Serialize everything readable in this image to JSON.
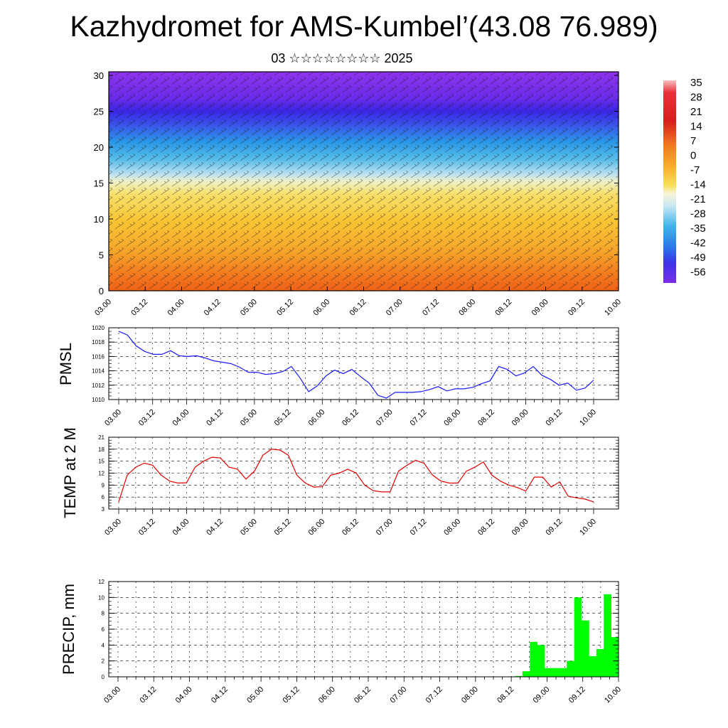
{
  "header": {
    "title": "Kazhydromet for AMS-Kumbel’(43.08 76.989)",
    "subtitle": "03 ☆☆☆☆☆☆☆☆ 2025"
  },
  "chart_data": [
    {
      "type": "heatmap",
      "description_of_field": "vertical cross-section of temperature with wind barbs",
      "x_ticks": [
        "03.00",
        "03.12",
        "04.00",
        "04.12",
        "05.00",
        "05.12",
        "06.00",
        "06.12",
        "07.00",
        "07.12",
        "08.00",
        "08.12",
        "09.00",
        "09.12",
        "10.00"
      ],
      "y_ticks": [
        0,
        5,
        10,
        15,
        20,
        25,
        30
      ],
      "ylim": [
        0,
        30.5
      ],
      "colorbar_labels": [
        "35",
        "28",
        "21",
        "14",
        "7",
        "0",
        "-7",
        "-14",
        "-21",
        "-28",
        "-35",
        "-42",
        "-49",
        "-56"
      ],
      "colors": {
        "warm_surface": "#f0701a",
        "mid": "#f7c531",
        "freezing": "#f5f0c0",
        "cold": "#2aa6e6",
        "deep": "#3c2be8",
        "top": "#8a2ee6"
      }
    },
    {
      "type": "line",
      "ylabel": "PMSL",
      "x_ticks": [
        "03.00",
        "03.12",
        "04.00",
        "04.12",
        "05.00",
        "05.12",
        "06.00",
        "06.12",
        "07.00",
        "07.12",
        "08.00",
        "08.12",
        "09.00",
        "09.12",
        "10.00"
      ],
      "y_ticks": [
        1010,
        1012,
        1014,
        1016,
        1018,
        1020
      ],
      "ylim": [
        1010,
        1020
      ],
      "color": "#1a1aff",
      "values": [
        1019.5,
        1019.0,
        1017.5,
        1016.7,
        1016.3,
        1016.3,
        1016.8,
        1016.1,
        1016.0,
        1016.1,
        1015.8,
        1015.4,
        1015.2,
        1015.0,
        1014.5,
        1013.8,
        1013.8,
        1013.5,
        1013.6,
        1013.9,
        1014.6,
        1013.0,
        1011.1,
        1011.9,
        1013.3,
        1014.1,
        1013.6,
        1014.2,
        1013.2,
        1012.3,
        1010.6,
        1010.2,
        1011.0,
        1011.0,
        1011.0,
        1011.1,
        1011.4,
        1011.8,
        1011.2,
        1011.5,
        1011.5,
        1011.7,
        1012.2,
        1012.6,
        1014.6,
        1014.2,
        1013.3,
        1013.7,
        1014.6,
        1013.4,
        1012.8,
        1012.0,
        1012.3,
        1011.3,
        1011.6,
        1012.7
      ]
    },
    {
      "type": "line",
      "ylabel": "TEMP at 2 M",
      "x_ticks": [
        "03.00",
        "03.12",
        "04.00",
        "04.12",
        "05.00",
        "05.12",
        "06.00",
        "06.12",
        "07.00",
        "07.12",
        "08.00",
        "08.12",
        "09.00",
        "09.12",
        "10.00"
      ],
      "y_ticks": [
        3,
        6,
        9,
        12,
        15,
        18,
        21
      ],
      "ylim": [
        3,
        21
      ],
      "color": "#e00000",
      "values": [
        4.8,
        11.5,
        13.5,
        14.5,
        14.0,
        11.5,
        10.0,
        9.5,
        9.6,
        13.5,
        15.0,
        16.0,
        15.8,
        13.5,
        13.0,
        10.5,
        12.5,
        16.5,
        18.0,
        17.8,
        16.5,
        11.5,
        9.5,
        8.5,
        8.6,
        11.5,
        12.0,
        13.0,
        12.0,
        9.0,
        7.6,
        7.3,
        7.3,
        12.5,
        14.0,
        15.2,
        14.5,
        11.5,
        10.0,
        9.5,
        9.5,
        12.5,
        13.5,
        14.8,
        11.5,
        10.0,
        9.0,
        8.4,
        7.5,
        11.0,
        11.0,
        8.5,
        9.8,
        6.2,
        5.8,
        5.5,
        4.8
      ]
    },
    {
      "type": "bar",
      "ylabel": "PRECIP, mm",
      "x_ticks": [
        "03.00",
        "03.12",
        "04.00",
        "04.12",
        "05.00",
        "05.12",
        "06.00",
        "06.12",
        "07.00",
        "07.12",
        "08.00",
        "08.12",
        "09.00",
        "09.12",
        "10.00"
      ],
      "y_ticks": [
        0,
        2,
        4,
        6,
        8,
        10,
        12
      ],
      "ylim": [
        0,
        12
      ],
      "color": "#00ff00",
      "values": [
        0,
        0,
        0,
        0,
        0,
        0,
        0,
        0,
        0,
        0,
        0,
        0,
        0,
        0,
        0,
        0,
        0,
        0,
        0,
        0,
        0,
        0,
        0,
        0,
        0,
        0,
        0,
        0,
        0,
        0,
        0,
        0,
        0,
        0,
        0,
        0,
        0,
        0,
        0,
        0,
        0,
        0,
        0,
        0,
        0,
        0,
        0,
        0,
        0,
        0,
        0,
        0,
        0,
        0,
        0,
        0.1,
        0.7,
        4.4,
        4.0,
        1.1,
        1.1,
        1.1,
        2.0,
        10.0,
        7.1,
        2.6,
        3.5,
        10.4,
        5.0
      ]
    }
  ]
}
